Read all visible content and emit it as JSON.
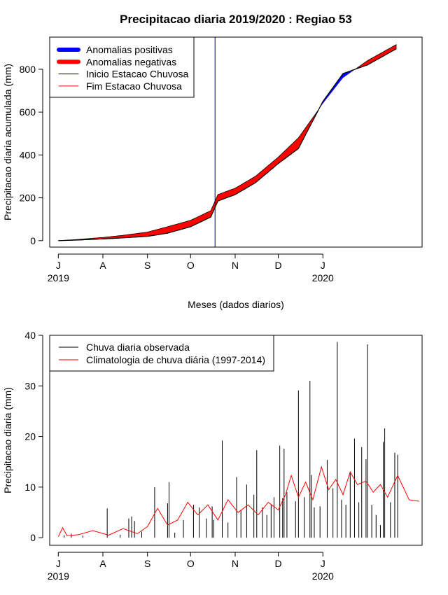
{
  "title": "Precipitacao diaria 2019/2020 : Regiao 53",
  "colors": {
    "positive": "#0000ff",
    "negative": "#ff0000",
    "start": "#00008b",
    "end": "#ff0000",
    "observed": "#000000",
    "climatology": "#ff0000"
  },
  "chart_data": [
    {
      "type": "area",
      "xlabel": "Meses (dados diarios)",
      "ylabel": "Precipitacao diaria acumulada (mm)",
      "x_ticks": [
        "J",
        "A",
        "S",
        "O",
        "N",
        "D",
        "J"
      ],
      "x_tick_dates": [
        "2019-07-01",
        "2019-08-01",
        "2019-09-01",
        "2019-10-01",
        "2019-11-01",
        "2019-12-01",
        "2020-01-01"
      ],
      "year_labels": [
        {
          "label": "2019",
          "date": "2019-07-01"
        },
        {
          "label": "2020",
          "date": "2020-01-01"
        }
      ],
      "y_ticks": [
        0,
        200,
        400,
        600,
        800
      ],
      "ylim": [
        -30,
        950
      ],
      "xlim": [
        "2019-06-25",
        "2020-03-10"
      ],
      "legend": [
        "Anomalias positivas",
        "Anomalias negativas",
        "Inicio Estacao Chuvosa",
        "Fim Estacao Chuvosa"
      ],
      "legend_position": "top-left",
      "rainy_season_start": "2019-10-18",
      "series": [
        {
          "name": "observed_cumulative",
          "points": [
            [
              "2019-07-01",
              0
            ],
            [
              "2019-07-15",
              3
            ],
            [
              "2019-08-01",
              8
            ],
            [
              "2019-08-15",
              13
            ],
            [
              "2019-09-01",
              20
            ],
            [
              "2019-09-15",
              35
            ],
            [
              "2019-10-01",
              65
            ],
            [
              "2019-10-15",
              110
            ],
            [
              "2019-10-20",
              185
            ],
            [
              "2019-11-01",
              215
            ],
            [
              "2019-11-15",
              270
            ],
            [
              "2019-12-01",
              360
            ],
            [
              "2019-12-15",
              430
            ],
            [
              "2020-01-01",
              650
            ],
            [
              "2020-01-15",
              780
            ],
            [
              "2020-02-01",
              820
            ],
            [
              "2020-02-21",
              895
            ]
          ]
        },
        {
          "name": "climatology_cumulative",
          "points": [
            [
              "2019-07-01",
              0
            ],
            [
              "2019-07-15",
              6
            ],
            [
              "2019-08-01",
              15
            ],
            [
              "2019-08-15",
              25
            ],
            [
              "2019-09-01",
              40
            ],
            [
              "2019-09-15",
              65
            ],
            [
              "2019-10-01",
              95
            ],
            [
              "2019-10-15",
              140
            ],
            [
              "2019-10-20",
              215
            ],
            [
              "2019-11-01",
              245
            ],
            [
              "2019-11-15",
              300
            ],
            [
              "2019-12-01",
              390
            ],
            [
              "2019-12-15",
              480
            ],
            [
              "2020-01-01",
              640
            ],
            [
              "2020-01-15",
              760
            ],
            [
              "2020-02-01",
              840
            ],
            [
              "2020-02-21",
              915
            ]
          ]
        }
      ]
    },
    {
      "type": "bar",
      "xlabel": "Meses (dados diarios)",
      "ylabel": "Precipitacao diaria (mm)",
      "x_ticks": [
        "J",
        "A",
        "S",
        "O",
        "N",
        "D",
        "J"
      ],
      "x_tick_dates": [
        "2019-07-01",
        "2019-08-01",
        "2019-09-01",
        "2019-10-01",
        "2019-11-01",
        "2019-12-01",
        "2020-01-01"
      ],
      "year_labels": [
        {
          "label": "2019",
          "date": "2019-07-01"
        },
        {
          "label": "2020",
          "date": "2020-01-01"
        }
      ],
      "y_ticks": [
        0,
        10,
        20,
        30,
        40
      ],
      "ylim": [
        -1.5,
        40
      ],
      "xlim": [
        "2019-06-25",
        "2020-03-10"
      ],
      "legend": [
        "Chuva diaria observada",
        "Climatologia de chuva diária (1997-2014)"
      ],
      "legend_position": "top-left",
      "series": [
        {
          "name": "Chuva diaria observada",
          "points": [
            [
              "2019-07-05",
              0.5
            ],
            [
              "2019-07-10",
              0.8
            ],
            [
              "2019-07-18",
              0.4
            ],
            [
              "2019-08-04",
              5.8
            ],
            [
              "2019-08-13",
              0.6
            ],
            [
              "2019-08-19",
              3.8
            ],
            [
              "2019-08-21",
              4.2
            ],
            [
              "2019-08-23",
              3.3
            ],
            [
              "2019-08-28",
              1.2
            ],
            [
              "2019-09-06",
              10
            ],
            [
              "2019-09-15",
              6.8
            ],
            [
              "2019-09-16",
              11
            ],
            [
              "2019-09-20",
              1.0
            ],
            [
              "2019-09-26",
              3.5
            ],
            [
              "2019-10-03",
              6.5
            ],
            [
              "2019-10-07",
              6.0
            ],
            [
              "2019-10-12",
              3.8
            ],
            [
              "2019-10-16",
              6.2
            ],
            [
              "2019-10-17",
              3.5
            ],
            [
              "2019-10-23",
              19.2
            ],
            [
              "2019-10-27",
              3.0
            ],
            [
              "2019-11-02",
              12.0
            ],
            [
              "2019-11-05",
              5.5
            ],
            [
              "2019-11-09",
              10.5
            ],
            [
              "2019-11-14",
              8.5
            ],
            [
              "2019-11-16",
              17.3
            ],
            [
              "2019-11-20",
              6.0
            ],
            [
              "2019-11-23",
              4.5
            ],
            [
              "2019-11-26",
              6.5
            ],
            [
              "2019-11-28",
              8.0
            ],
            [
              "2019-12-02",
              18.2
            ],
            [
              "2019-12-04",
              7.8
            ],
            [
              "2019-12-05",
              17.6
            ],
            [
              "2019-12-07",
              9.0
            ],
            [
              "2019-12-13",
              7.2
            ],
            [
              "2019-12-15",
              29.1
            ],
            [
              "2019-12-19",
              8.0
            ],
            [
              "2019-12-23",
              31.0
            ],
            [
              "2019-12-24",
              12.4
            ],
            [
              "2019-12-26",
              6.0
            ],
            [
              "2019-12-30",
              6.2
            ],
            [
              "2020-01-04",
              15.4
            ],
            [
              "2020-01-08",
              9.8
            ],
            [
              "2020-01-11",
              38.7
            ],
            [
              "2020-01-14",
              7.5
            ],
            [
              "2020-01-17",
              6.5
            ],
            [
              "2020-01-20",
              13.0
            ],
            [
              "2020-01-23",
              19.6
            ],
            [
              "2020-01-26",
              7.0
            ],
            [
              "2020-01-28",
              17.9
            ],
            [
              "2020-01-31",
              15.5
            ],
            [
              "2020-02-01",
              38.2
            ],
            [
              "2020-02-04",
              6.5
            ],
            [
              "2020-02-07",
              4.5
            ],
            [
              "2020-02-10",
              2.5
            ],
            [
              "2020-02-12",
              18.9
            ],
            [
              "2020-02-13",
              21.6
            ],
            [
              "2020-02-17",
              7.0
            ],
            [
              "2020-02-20",
              16.8
            ],
            [
              "2020-02-22",
              16.4
            ]
          ]
        },
        {
          "name": "Climatologia de chuva diária (1997-2014)",
          "points": [
            [
              "2019-07-01",
              0.2
            ],
            [
              "2019-07-04",
              2.0
            ],
            [
              "2019-07-07",
              0.4
            ],
            [
              "2019-07-15",
              0.6
            ],
            [
              "2019-07-25",
              1.4
            ],
            [
              "2019-08-05",
              0.5
            ],
            [
              "2019-08-15",
              1.8
            ],
            [
              "2019-08-25",
              0.8
            ],
            [
              "2019-09-01",
              2.2
            ],
            [
              "2019-09-08",
              5.8
            ],
            [
              "2019-09-15",
              2.5
            ],
            [
              "2019-09-22",
              3.5
            ],
            [
              "2019-09-29",
              7.0
            ],
            [
              "2019-10-06",
              4.5
            ],
            [
              "2019-10-13",
              6.5
            ],
            [
              "2019-10-20",
              3.5
            ],
            [
              "2019-10-27",
              7.5
            ],
            [
              "2019-11-03",
              5.0
            ],
            [
              "2019-11-10",
              6.5
            ],
            [
              "2019-11-17",
              4.5
            ],
            [
              "2019-11-24",
              7.0
            ],
            [
              "2019-12-01",
              5.5
            ],
            [
              "2019-12-06",
              8.5
            ],
            [
              "2019-12-10",
              12.3
            ],
            [
              "2019-12-15",
              8.0
            ],
            [
              "2019-12-20",
              11.0
            ],
            [
              "2019-12-25",
              7.5
            ],
            [
              "2019-12-31",
              14.0
            ],
            [
              "2020-01-05",
              9.5
            ],
            [
              "2020-01-10",
              11.5
            ],
            [
              "2020-01-15",
              8.5
            ],
            [
              "2020-01-20",
              13.0
            ],
            [
              "2020-01-25",
              10.5
            ],
            [
              "2020-01-31",
              11.2
            ],
            [
              "2020-02-05",
              9.0
            ],
            [
              "2020-02-10",
              10.5
            ],
            [
              "2020-02-15",
              8.0
            ],
            [
              "2020-02-22",
              12.3
            ],
            [
              "2020-03-01",
              7.5
            ],
            [
              "2020-03-08",
              7.2
            ]
          ]
        }
      ]
    }
  ]
}
